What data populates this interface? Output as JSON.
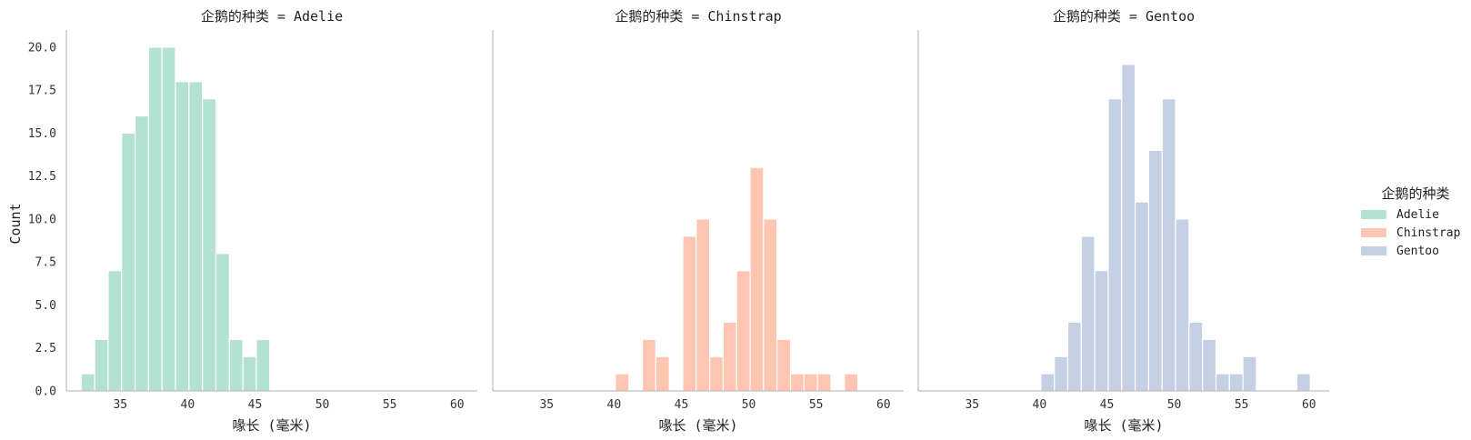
{
  "chart_data": {
    "type": "bar",
    "kind": "faceted histogram",
    "facet_variable": "企鹅的种类",
    "facet_titles": [
      "企鹅的种类 = Adelie",
      "企鹅的种类 = Chinstrap",
      "企鹅的种类 = Gentoo"
    ],
    "xlabel": "喙长 (毫米)",
    "ylabel": "Count",
    "xlim": [
      31,
      61.5
    ],
    "ylim": [
      0,
      21
    ],
    "xticks": [
      35,
      40,
      45,
      50,
      55,
      60
    ],
    "yticks": [
      "0.0",
      "2.5",
      "5.0",
      "7.5",
      "10.0",
      "12.5",
      "15.0",
      "17.5",
      "20.0"
    ],
    "bin_start": 32.1,
    "bin_width": 1.0,
    "legend": {
      "title": "企鹅的种类",
      "placement": "right",
      "entries": [
        "Adelie",
        "Chinstrap",
        "Gentoo"
      ]
    },
    "grid": false,
    "series": [
      {
        "name": "Adelie",
        "color": "#66c2a5",
        "counts": [
          1,
          3,
          7,
          15,
          16,
          20,
          20,
          18,
          18,
          17,
          8,
          3,
          2,
          3,
          0,
          0,
          0,
          0,
          0,
          0,
          0,
          0,
          0,
          0,
          0,
          0,
          0,
          0
        ]
      },
      {
        "name": "Chinstrap",
        "color": "#fc8d62",
        "counts": [
          0,
          0,
          0,
          0,
          0,
          0,
          0,
          0,
          1,
          0,
          3,
          2,
          0,
          9,
          10,
          2,
          4,
          7,
          13,
          10,
          3,
          1,
          1,
          1,
          0,
          1,
          0,
          0
        ]
      },
      {
        "name": "Gentoo",
        "color": "#8da0cb",
        "counts": [
          0,
          0,
          0,
          0,
          0,
          0,
          0,
          0,
          1,
          2,
          4,
          9,
          7,
          17,
          19,
          11,
          14,
          17,
          10,
          4,
          3,
          1,
          1,
          2,
          0,
          0,
          0,
          1
        ]
      }
    ]
  }
}
